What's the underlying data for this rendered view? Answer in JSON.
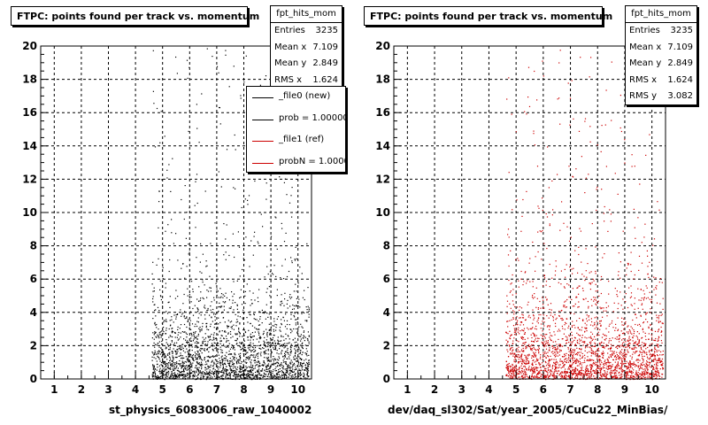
{
  "chart_data": [
    {
      "type": "scatter",
      "title": "FTPC: points found per track vs. momentum",
      "xlabel": "st_physics_6083006_raw_1040002",
      "ylabel": "",
      "xlim": [
        0.5,
        10.5
      ],
      "ylim": [
        0,
        20
      ],
      "x_ticks": [
        "1",
        "2",
        "3",
        "4",
        "5",
        "6",
        "7",
        "8",
        "9",
        "10"
      ],
      "y_ticks": [
        "0",
        "2",
        "4",
        "6",
        "8",
        "10",
        "12",
        "14",
        "16",
        "18",
        "20"
      ],
      "grid": true,
      "marker_color": "#000000",
      "stats": {
        "name": "fpt_hits_mom",
        "rows": [
          {
            "label": "Entries",
            "value": "3235"
          },
          {
            "label": "Mean x",
            "value": "7.109"
          },
          {
            "label": "Mean y",
            "value": "2.849"
          },
          {
            "label": "RMS x",
            "value": "1.624"
          }
        ]
      },
      "legend": {
        "placement": "top-right",
        "entries": [
          {
            "label": "_file0 (new)",
            "color": "#000000"
          },
          {
            "label": "prob = 1.000000",
            "color": "#000000"
          },
          {
            "label": "_file1 (ref)",
            "color": "#cc0000"
          },
          {
            "label": "probN = 1.000000",
            "color": "#cc0000"
          }
        ]
      },
      "distribution": {
        "x_range": [
          4.6,
          10.4
        ],
        "entries": 3235,
        "mean_y": 2.849
      }
    },
    {
      "type": "scatter",
      "title": "FTPC: points found per track vs. momentum",
      "xlabel": "dev/daq_sl302/Sat/year_2005/CuCu22_MinBias/",
      "ylabel": "",
      "xlim": [
        0.5,
        10.5
      ],
      "ylim": [
        0,
        20
      ],
      "x_ticks": [
        "1",
        "2",
        "3",
        "4",
        "5",
        "6",
        "7",
        "8",
        "9",
        "10"
      ],
      "y_ticks": [
        "0",
        "2",
        "4",
        "6",
        "8",
        "10",
        "12",
        "14",
        "16",
        "18",
        "20"
      ],
      "grid": true,
      "marker_color": "#cc0000",
      "stats": {
        "name": "fpt_hits_mom",
        "rows": [
          {
            "label": "Entries",
            "value": "3235"
          },
          {
            "label": "Mean x",
            "value": "7.109"
          },
          {
            "label": "Mean y",
            "value": "2.849"
          },
          {
            "label": "RMS x",
            "value": "1.624"
          },
          {
            "label": "RMS y",
            "value": "3.082"
          }
        ]
      },
      "distribution": {
        "x_range": [
          4.6,
          10.4
        ],
        "entries": 3235,
        "mean_y": 2.849
      }
    }
  ]
}
